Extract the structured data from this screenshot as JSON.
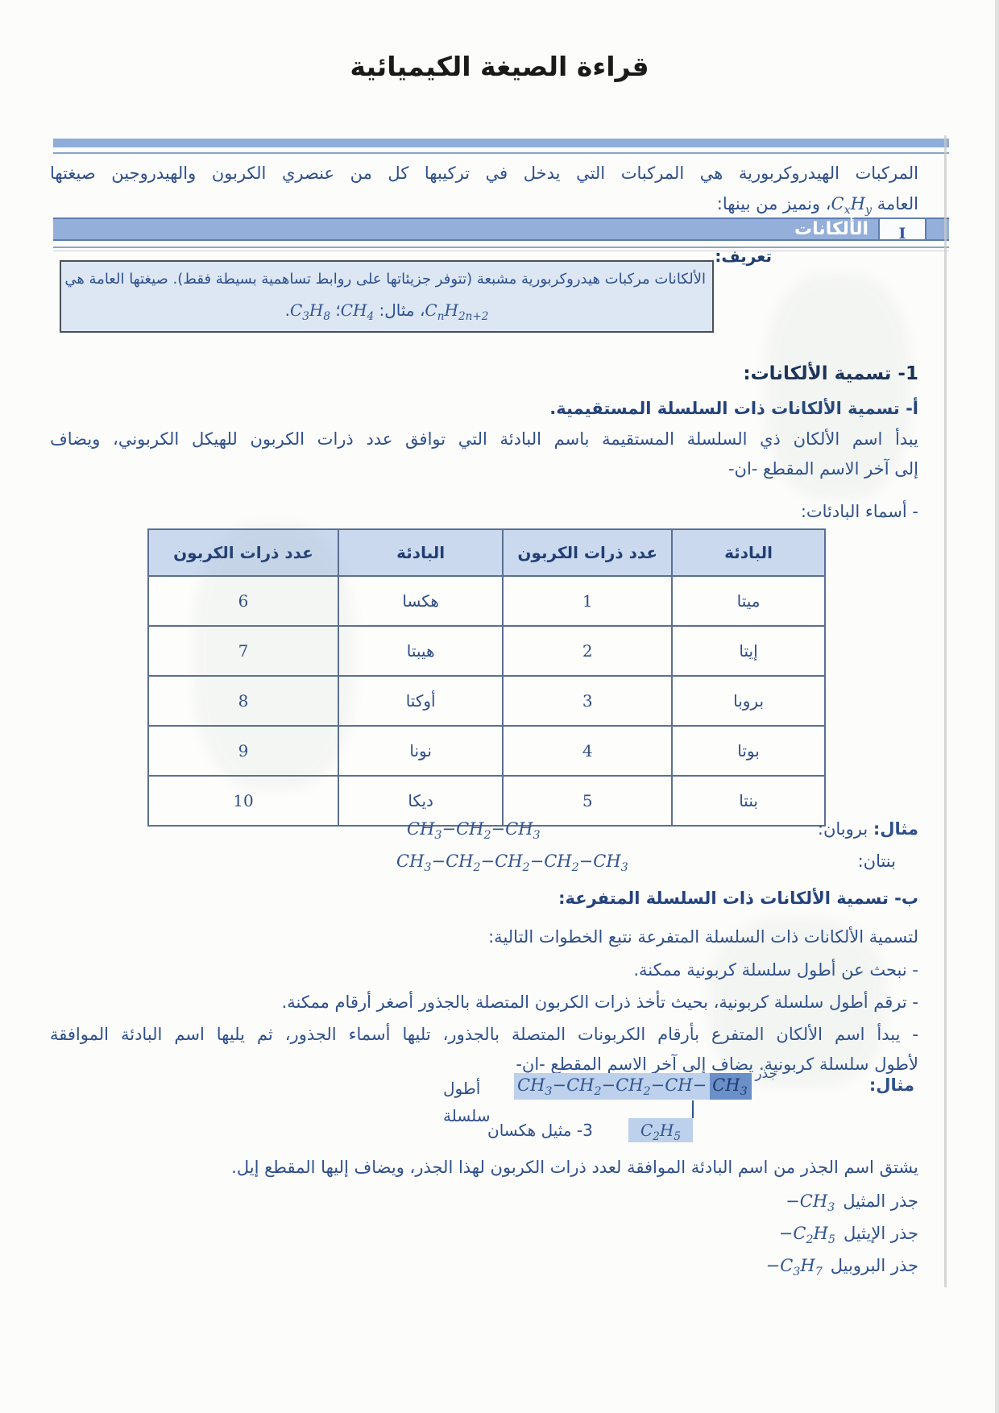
{
  "page": {
    "title": "قراءة الصيغة الكيميائية"
  },
  "intro": {
    "line1": "المركبات الهيدروكربورية هي المركبات التي يدخل في تركيبها كل من عنصري الكربون والهيدروجين صيغتها",
    "line2_pre": "العامة ",
    "general_formula": "C_xH_y",
    "line2_post": "، ونميز من بينها:"
  },
  "section": {
    "number": "I",
    "title": "الألكانات"
  },
  "definition": {
    "label": "تعريف:",
    "line1": "الألكانات مركبات هيدروكربورية مشبعة (تتوفر جزيئاتها على روابط تساهمية بسيطة فقط). صيغتها العامة هي",
    "formula_general": "C_nH_{2n+2}",
    "joiner1": "، مثال: ",
    "formula_ex1": "CH_4",
    "joiner2": "؛ ",
    "formula_ex2": "C_3H_8",
    "joiner3": "."
  },
  "naming": {
    "heading": "1- تسمية الألكانات:",
    "straight_heading": "أ- تسمية الألكانات ذات السلسلة المستقيمية.",
    "straight_p1": "يبدأ اسم الألكان ذي السلسلة المستقيمة باسم البادئة التي توافق عدد ذرات الكربون للهيكل الكربوني، ويضاف",
    "straight_p2": "إلى آخر الاسم المقطع -ان-",
    "prefixes_label": "- أسماء البادئات:"
  },
  "prefix_table": {
    "headers": [
      "البادئة",
      "عدد ذرات الكربون",
      "البادئة",
      "عدد ذرات الكربون"
    ],
    "rows": [
      [
        "ميتا",
        "1",
        "هكسا",
        "6"
      ],
      [
        "إيتا",
        "2",
        "هيبتا",
        "7"
      ],
      [
        "بروبا",
        "3",
        "أوكتا",
        "8"
      ],
      [
        "بوتا",
        "4",
        "نونا",
        "9"
      ],
      [
        "بنتا",
        "5",
        "ديكا",
        "10"
      ]
    ]
  },
  "straight_examples": {
    "label_bold": "مثال:",
    "propane_name": " بروبان:",
    "propane_formula": "CH_3−CH_2−CH_3",
    "pentane_name": "بنتان:",
    "pentane_formula": "CH_3−CH_2−CH_2−CH_2−CH_3"
  },
  "branched": {
    "heading": "ب- تسمية الألكانات ذات السلسلة المتفرعة:",
    "intro": "لتسمية الألكانات ذات السلسلة المتفرعة نتبع الخطوات التالية:",
    "steps": [
      "- نبحث عن أطول سلسلة كربونية ممكنة.",
      "- ترقم أطول سلسلة كربونية، بحيث تأخذ ذرات الكربون المتصلة بالجذور أصغر أرقام ممكنة.",
      "- يبدأ اسم الألكان المتفرع بأرقام الكربونات المتصلة بالجذور، تليها أسماء الجذور، ثم يليها اسم البادئة الموافقة"
    ],
    "step3_cont": "لأطول سلسلة كربونية. يضاف إلى آخر الاسم المقطع -ان-",
    "example_label": "مثال:",
    "radical_label": "جذر",
    "chain_light": "CH_3−CH_2−CH_2−CH−",
    "chain_dark": "CH_3",
    "longest_chain_label": "أطول سلسلة",
    "substituent": "C_2H_5",
    "compound_name": "3- مثيل هكسان",
    "radical_note": "يشتق اسم الجذر من اسم البادئة الموافقة لعدد ذرات الكربون لهذا الجذر، ويضاف إليها المقطع إيل."
  },
  "radicals": [
    {
      "label": "جذر المثيل",
      "formula": "−CH_3"
    },
    {
      "label": "جذر الإيثيل",
      "formula": "−C_2H_5"
    },
    {
      "label": "جذر البروبيل",
      "formula": "−C_3H_7"
    }
  ],
  "colors": {
    "band_blue": "#93afda",
    "definition_box_blue": "#dde7f4",
    "table_header_blue": "#cbd9ef",
    "highlight_light": "#bdd1ec",
    "highlight_dark": "#6b90c9",
    "text_navy": "#2e4f8c"
  }
}
